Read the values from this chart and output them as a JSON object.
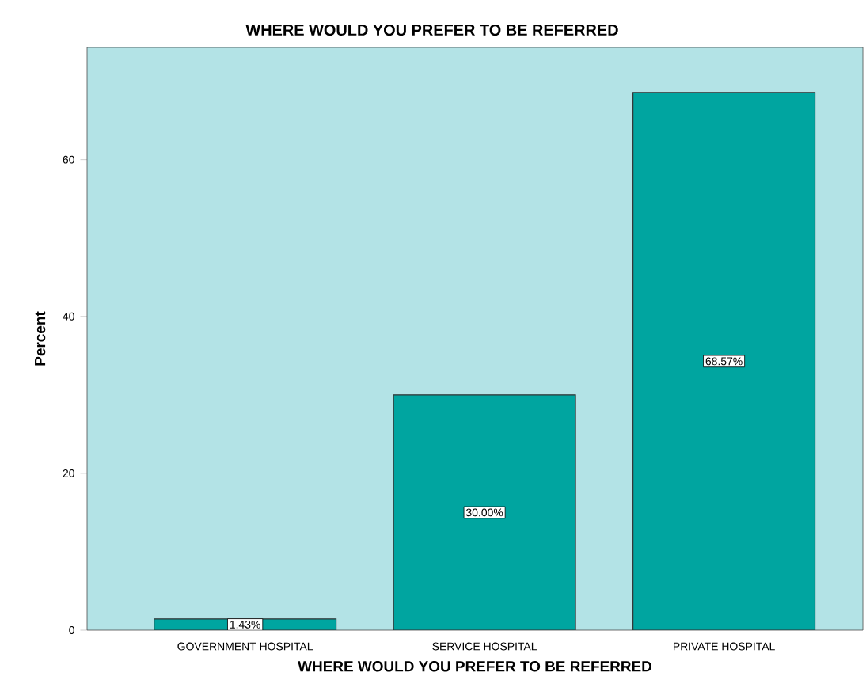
{
  "chart_data": {
    "type": "bar",
    "title": "WHERE WOULD YOU PREFER TO BE REFERRED",
    "xlabel": "WHERE WOULD YOU PREFER TO BE REFERRED",
    "ylabel": "Percent",
    "categories": [
      "GOVERNMENT HOSPITAL",
      "SERVICE HOSPITAL",
      "PRIVATE HOSPITAL"
    ],
    "values": [
      1.43,
      30.0,
      68.57
    ],
    "value_labels": [
      "1.43%",
      "30.00%",
      "68.57%"
    ],
    "color": "#00a5a0",
    "ylim": [
      0,
      74.3
    ],
    "yticks": [
      0,
      20,
      40,
      60
    ],
    "grid": false
  }
}
